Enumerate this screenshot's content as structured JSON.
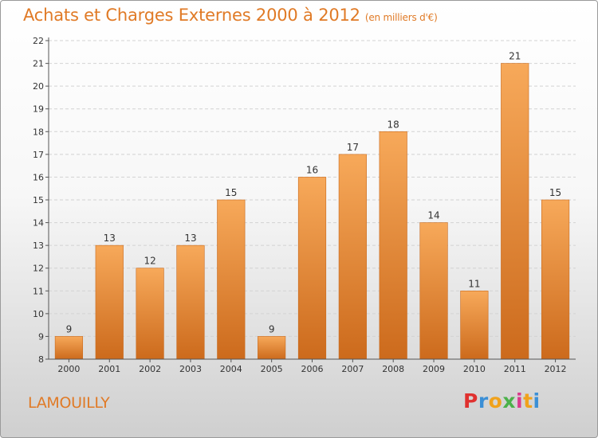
{
  "header": {
    "title": "Achats et Charges Externes 2000 à 2012",
    "subtitle": "(en milliers d'€)"
  },
  "footer": {
    "commune": "LAMOUILLY",
    "logo_letters": [
      "P",
      "r",
      "o",
      "x",
      "i",
      "t",
      "i"
    ],
    "logo_colors": [
      "#e0312f",
      "#3b8fd6",
      "#f0a21c",
      "#4bb14a",
      "#d93b8c",
      "#f0a21c",
      "#3b8fd6"
    ]
  },
  "colors": {
    "bar_top": "#f7a95a",
    "bar_bottom": "#cc6a1c",
    "text_accent": "#e07a26"
  },
  "chart_data": {
    "type": "bar",
    "title": "Achats et Charges Externes 2000 à 2012",
    "subtitle": "(en milliers d'€)",
    "categories": [
      "2000",
      "2001",
      "2002",
      "2003",
      "2004",
      "2005",
      "2006",
      "2007",
      "2008",
      "2009",
      "2010",
      "2011",
      "2012"
    ],
    "values": [
      9,
      13,
      12,
      13,
      15,
      9,
      16,
      17,
      18,
      14,
      11,
      21,
      15
    ],
    "ylim": [
      8,
      22
    ],
    "yticks": [
      8,
      9,
      10,
      11,
      12,
      13,
      14,
      15,
      16,
      17,
      18,
      19,
      20,
      21,
      22
    ],
    "grid": true,
    "data_labels": true
  }
}
